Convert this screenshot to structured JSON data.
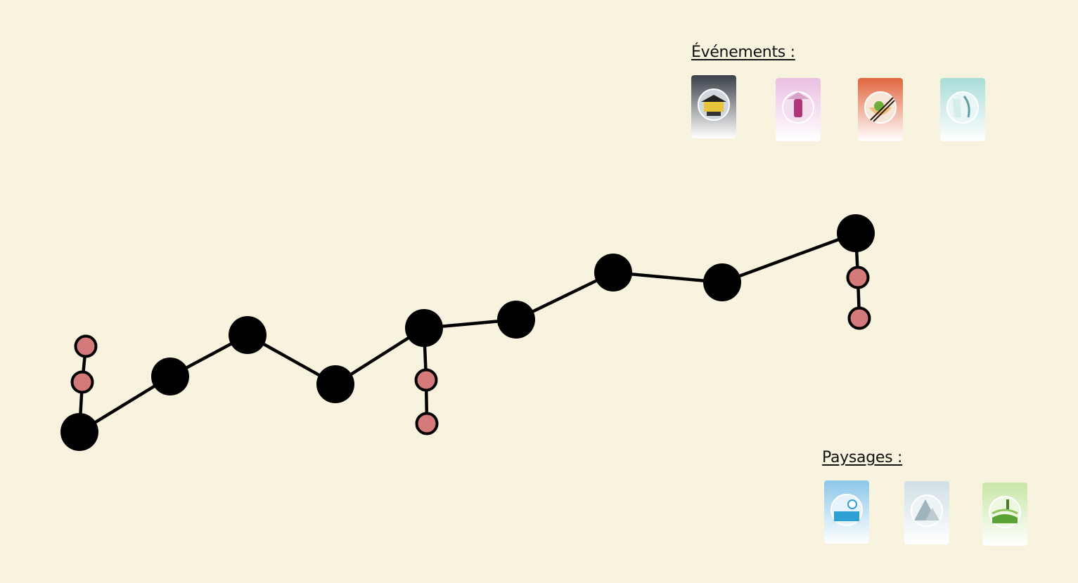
{
  "events": {
    "title": "Événements :",
    "cards": [
      {
        "icon": "temple-event-card-icon",
        "colors": {
          "bg": "#3a4048",
          "accent": "#e6c53a",
          "circle": "#cfd6de"
        }
      },
      {
        "icon": "traveler-event-card-icon",
        "colors": {
          "bg": "#e9bfe2",
          "accent": "#b0357a",
          "circle": "#f4dff0"
        }
      },
      {
        "icon": "noodle-bowl-event-card-icon",
        "colors": {
          "bg": "#e2663f",
          "accent": "#6fae3c",
          "circle": "#f6e7d9"
        }
      },
      {
        "icon": "waterfall-event-card-icon",
        "colors": {
          "bg": "#a9dcd9",
          "accent": "#5f9ea0",
          "circle": "#e8f6f5"
        }
      }
    ]
  },
  "landscapes": {
    "title": "Paysages :",
    "cards": [
      {
        "icon": "sea-landscape-card-icon",
        "colors": {
          "bg": "#8cc7e8",
          "accent": "#2f9fd6",
          "circle": "#e7f4fb"
        }
      },
      {
        "icon": "mountain-landscape-card-icon",
        "colors": {
          "bg": "#cfdfe4",
          "accent": "#9fb4bb",
          "circle": "#eef4f6"
        }
      },
      {
        "icon": "rice-field-landscape-card-icon",
        "colors": {
          "bg": "#c9e6a6",
          "accent": "#5aa335",
          "circle": "#eef7e2"
        }
      }
    ]
  },
  "colors": {
    "background": "#f8f3df",
    "main_stop": "#000000",
    "side_stop": "#d47a7a",
    "path": "#000000"
  }
}
